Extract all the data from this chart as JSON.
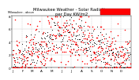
{
  "title": "Milwaukee Weather - Solar Radiation",
  "subtitle": "per Day KW/m2",
  "background_color": "#ffffff",
  "plot_bg_color": "#ffffff",
  "grid_color": "#b0b0b0",
  "dot_color_black": "#000000",
  "dot_color_red": "#ff0000",
  "legend_box_color": "#ff0000",
  "ylim": [
    0,
    8
  ],
  "n_points": 365,
  "vline_positions": [
    31,
    59,
    90,
    120,
    151,
    181,
    212,
    243,
    273,
    304,
    334
  ],
  "month_ticks": [
    0,
    31,
    59,
    90,
    120,
    151,
    181,
    212,
    243,
    273,
    304,
    334
  ],
  "month_labels": [
    "J",
    "F",
    "M",
    "A",
    "M",
    "J",
    "J",
    "A",
    "S",
    "O",
    "N",
    "D"
  ],
  "yticks": [
    0,
    2,
    4,
    6,
    8
  ],
  "xlabel_fontsize": 3.0,
  "ylabel_fontsize": 3.0,
  "title_fontsize": 3.8,
  "dot_size_red": 1.2,
  "dot_size_black": 0.6,
  "noise_scale_red": 2.2,
  "noise_scale_black": 1.5,
  "seasonal_amplitude": 2.0,
  "seasonal_base": 3.0,
  "seasonal_phase": 80
}
